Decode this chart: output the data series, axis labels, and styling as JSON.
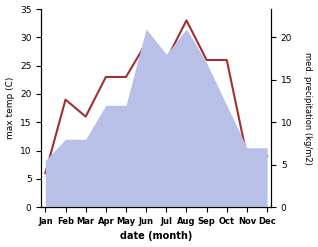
{
  "months": [
    "Jan",
    "Feb",
    "Mar",
    "Apr",
    "May",
    "Jun",
    "Jul",
    "Aug",
    "Sep",
    "Oct",
    "Nov",
    "Dec"
  ],
  "temperature": [
    6,
    19,
    16,
    23,
    23,
    29,
    26,
    33,
    26,
    26,
    9,
    9
  ],
  "precipitation": [
    5.5,
    8,
    8,
    12,
    12,
    21,
    18,
    21,
    17,
    12,
    7,
    7
  ],
  "temp_color": "#a03030",
  "precip_color_fill": "#b8c0e8",
  "title": "",
  "xlabel": "date (month)",
  "ylabel_left": "max temp (C)",
  "ylabel_right": "med. precipitation (kg/m2)",
  "ylim_left": [
    0,
    35
  ],
  "ylim_right": [
    0,
    23.33
  ],
  "yticks_left": [
    0,
    5,
    10,
    15,
    20,
    25,
    30,
    35
  ],
  "yticks_right": [
    0,
    5,
    10,
    15,
    20
  ],
  "background_color": "#ffffff"
}
